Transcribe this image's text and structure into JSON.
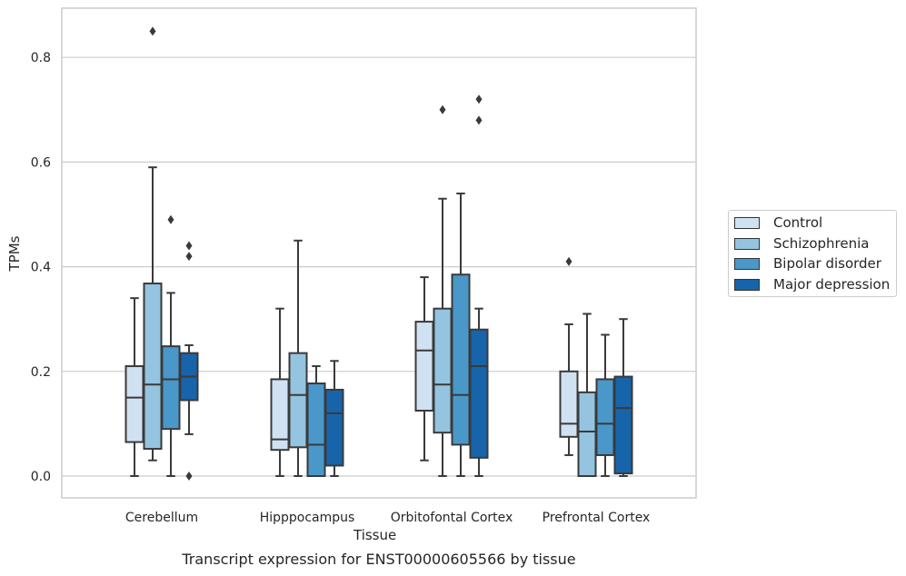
{
  "chart_data": {
    "type": "box",
    "title": "",
    "caption": "Transcript expression for ENST00000605566 by tissue",
    "xlabel": "Tissue",
    "ylabel": "TPMs",
    "ylim": [
      -0.04,
      0.89
    ],
    "yticks": [
      "0.0",
      "0.2",
      "0.4",
      "0.6",
      "0.8"
    ],
    "grid": true,
    "legend_position": "right",
    "categories": [
      "Cerebellum",
      "Hipppocampus",
      "Orbitofontal Cortex",
      "Prefrontal Cortex"
    ],
    "series": [
      {
        "name": "Control",
        "color": "#d0e1f2",
        "boxes": [
          {
            "whisker_low": 0.0,
            "q1": 0.065,
            "median": 0.15,
            "q3": 0.21,
            "whisker_high": 0.34,
            "outliers": []
          },
          {
            "whisker_low": 0.0,
            "q1": 0.05,
            "median": 0.07,
            "q3": 0.185,
            "whisker_high": 0.32,
            "outliers": []
          },
          {
            "whisker_low": 0.03,
            "q1": 0.125,
            "median": 0.24,
            "q3": 0.295,
            "whisker_high": 0.38,
            "outliers": []
          },
          {
            "whisker_low": 0.04,
            "q1": 0.075,
            "median": 0.1,
            "q3": 0.2,
            "whisker_high": 0.29,
            "outliers": [
              0.41
            ]
          }
        ]
      },
      {
        "name": "Schizophrenia",
        "color": "#94c4df",
        "boxes": [
          {
            "whisker_low": 0.03,
            "q1": 0.052,
            "median": 0.175,
            "q3": 0.368,
            "whisker_high": 0.59,
            "outliers": [
              0.85
            ]
          },
          {
            "whisker_low": 0.0,
            "q1": 0.055,
            "median": 0.155,
            "q3": 0.235,
            "whisker_high": 0.45,
            "outliers": []
          },
          {
            "whisker_low": 0.0,
            "q1": 0.083,
            "median": 0.175,
            "q3": 0.32,
            "whisker_high": 0.53,
            "outliers": [
              0.7
            ]
          },
          {
            "whisker_low": 0.0,
            "q1": 0.0,
            "median": 0.085,
            "q3": 0.16,
            "whisker_high": 0.31,
            "outliers": []
          }
        ]
      },
      {
        "name": "Bipolar disorder",
        "color": "#4a98c9",
        "boxes": [
          {
            "whisker_low": 0.0,
            "q1": 0.09,
            "median": 0.185,
            "q3": 0.248,
            "whisker_high": 0.35,
            "outliers": [
              0.49
            ]
          },
          {
            "whisker_low": 0.0,
            "q1": 0.0,
            "median": 0.06,
            "q3": 0.177,
            "whisker_high": 0.21,
            "outliers": []
          },
          {
            "whisker_low": 0.0,
            "q1": 0.06,
            "median": 0.155,
            "q3": 0.385,
            "whisker_high": 0.54,
            "outliers": []
          },
          {
            "whisker_low": 0.0,
            "q1": 0.04,
            "median": 0.1,
            "q3": 0.185,
            "whisker_high": 0.27,
            "outliers": []
          }
        ]
      },
      {
        "name": "Major depression",
        "color": "#1764ab",
        "boxes": [
          {
            "whisker_low": 0.08,
            "q1": 0.145,
            "median": 0.19,
            "q3": 0.235,
            "whisker_high": 0.25,
            "outliers": [
              0.44,
              0.42,
              0.0
            ]
          },
          {
            "whisker_low": 0.0,
            "q1": 0.02,
            "median": 0.12,
            "q3": 0.165,
            "whisker_high": 0.22,
            "outliers": []
          },
          {
            "whisker_low": 0.0,
            "q1": 0.035,
            "median": 0.21,
            "q3": 0.28,
            "whisker_high": 0.32,
            "outliers": [
              0.72,
              0.68
            ]
          },
          {
            "whisker_low": 0.0,
            "q1": 0.005,
            "median": 0.13,
            "q3": 0.19,
            "whisker_high": 0.3,
            "outliers": []
          }
        ]
      }
    ]
  }
}
